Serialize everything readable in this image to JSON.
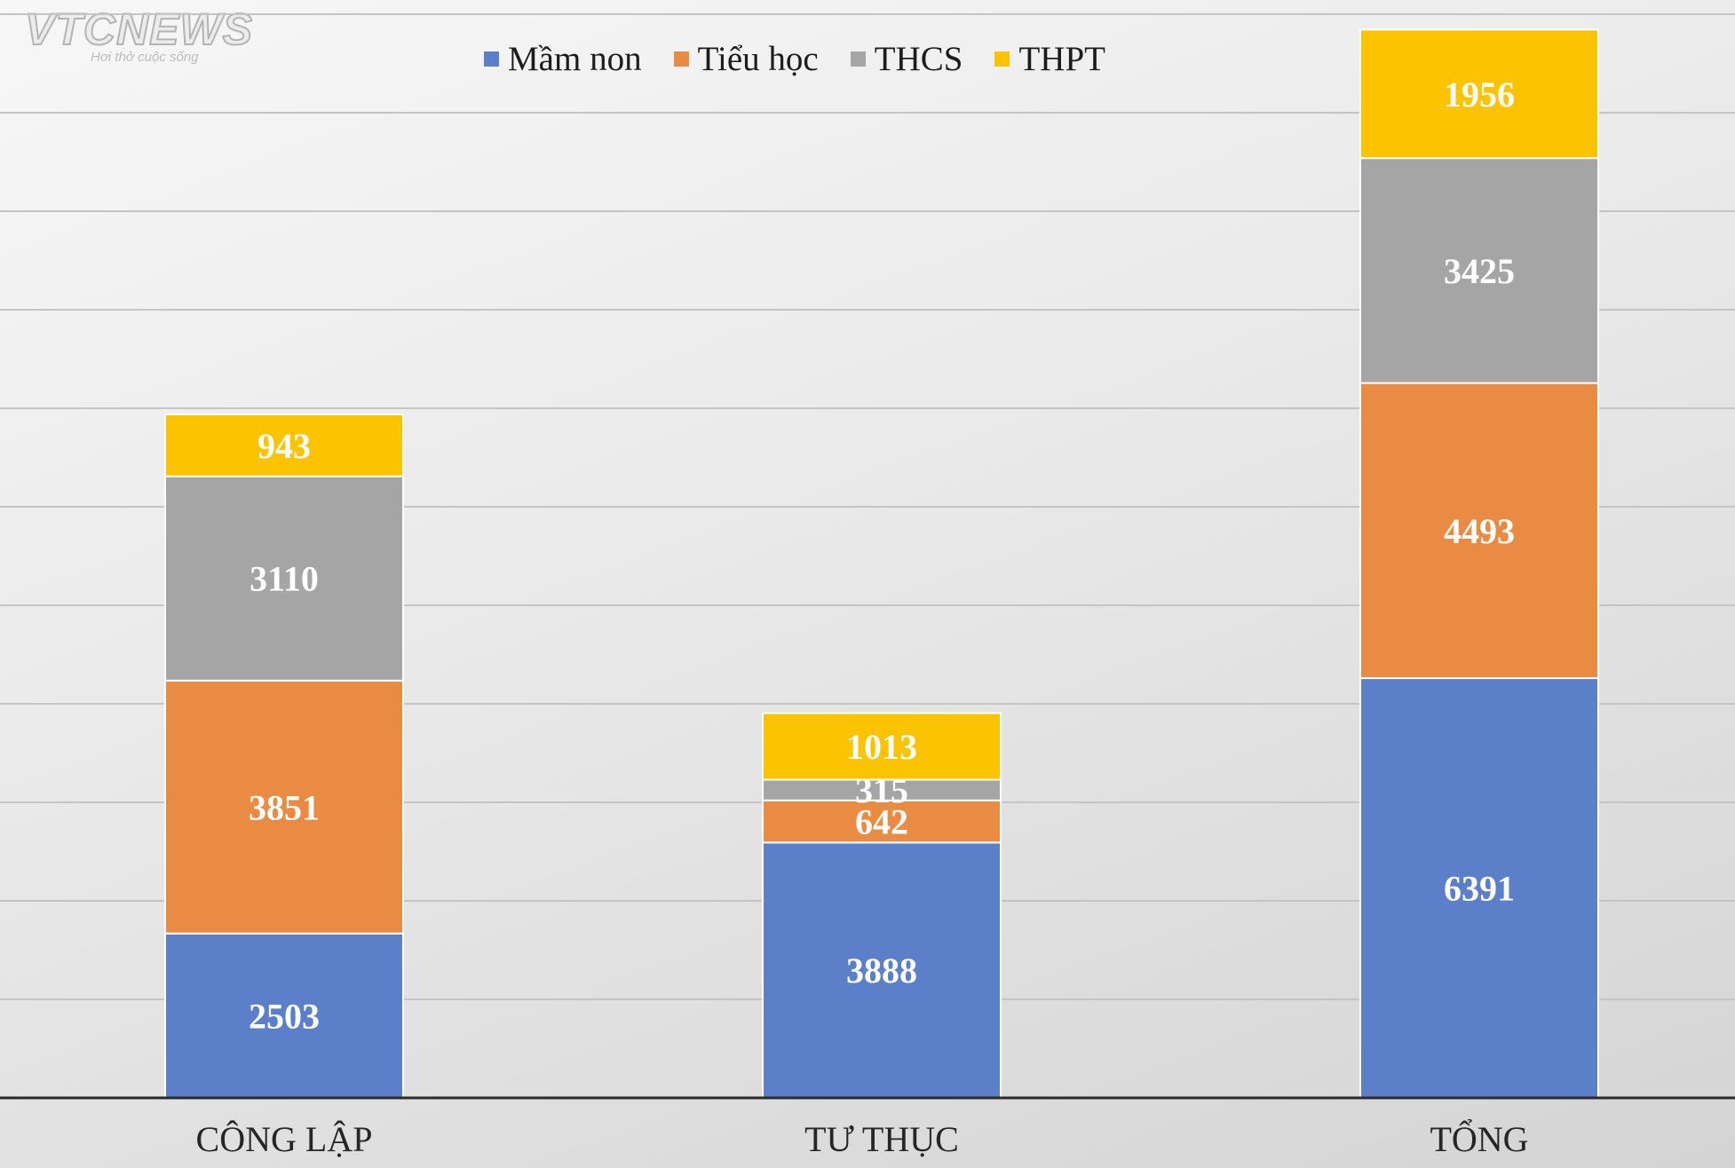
{
  "watermark": {
    "logo": "VTCNEWS",
    "tagline": "Hơi thở cuộc sống"
  },
  "chart_data": {
    "type": "bar",
    "stacked": true,
    "title": "",
    "xlabel": "",
    "ylabel": "",
    "ylim": [
      0,
      16500
    ],
    "grid": true,
    "legend_position": "top-center",
    "categories": [
      "CÔNG LẬP",
      "TƯ THỤC",
      "TỔNG"
    ],
    "series": [
      {
        "name": "Mầm non",
        "color": "#5b80c9",
        "values": [
          2503,
          3888,
          6391
        ]
      },
      {
        "name": "Tiểu học",
        "color": "#ea8b44",
        "values": [
          3851,
          642,
          4493
        ]
      },
      {
        "name": "THCS",
        "color": "#a5a5a5",
        "values": [
          3110,
          315,
          3425
        ]
      },
      {
        "name": "THPT",
        "color": "#fcc300",
        "values": [
          943,
          1013,
          1956
        ]
      }
    ]
  }
}
